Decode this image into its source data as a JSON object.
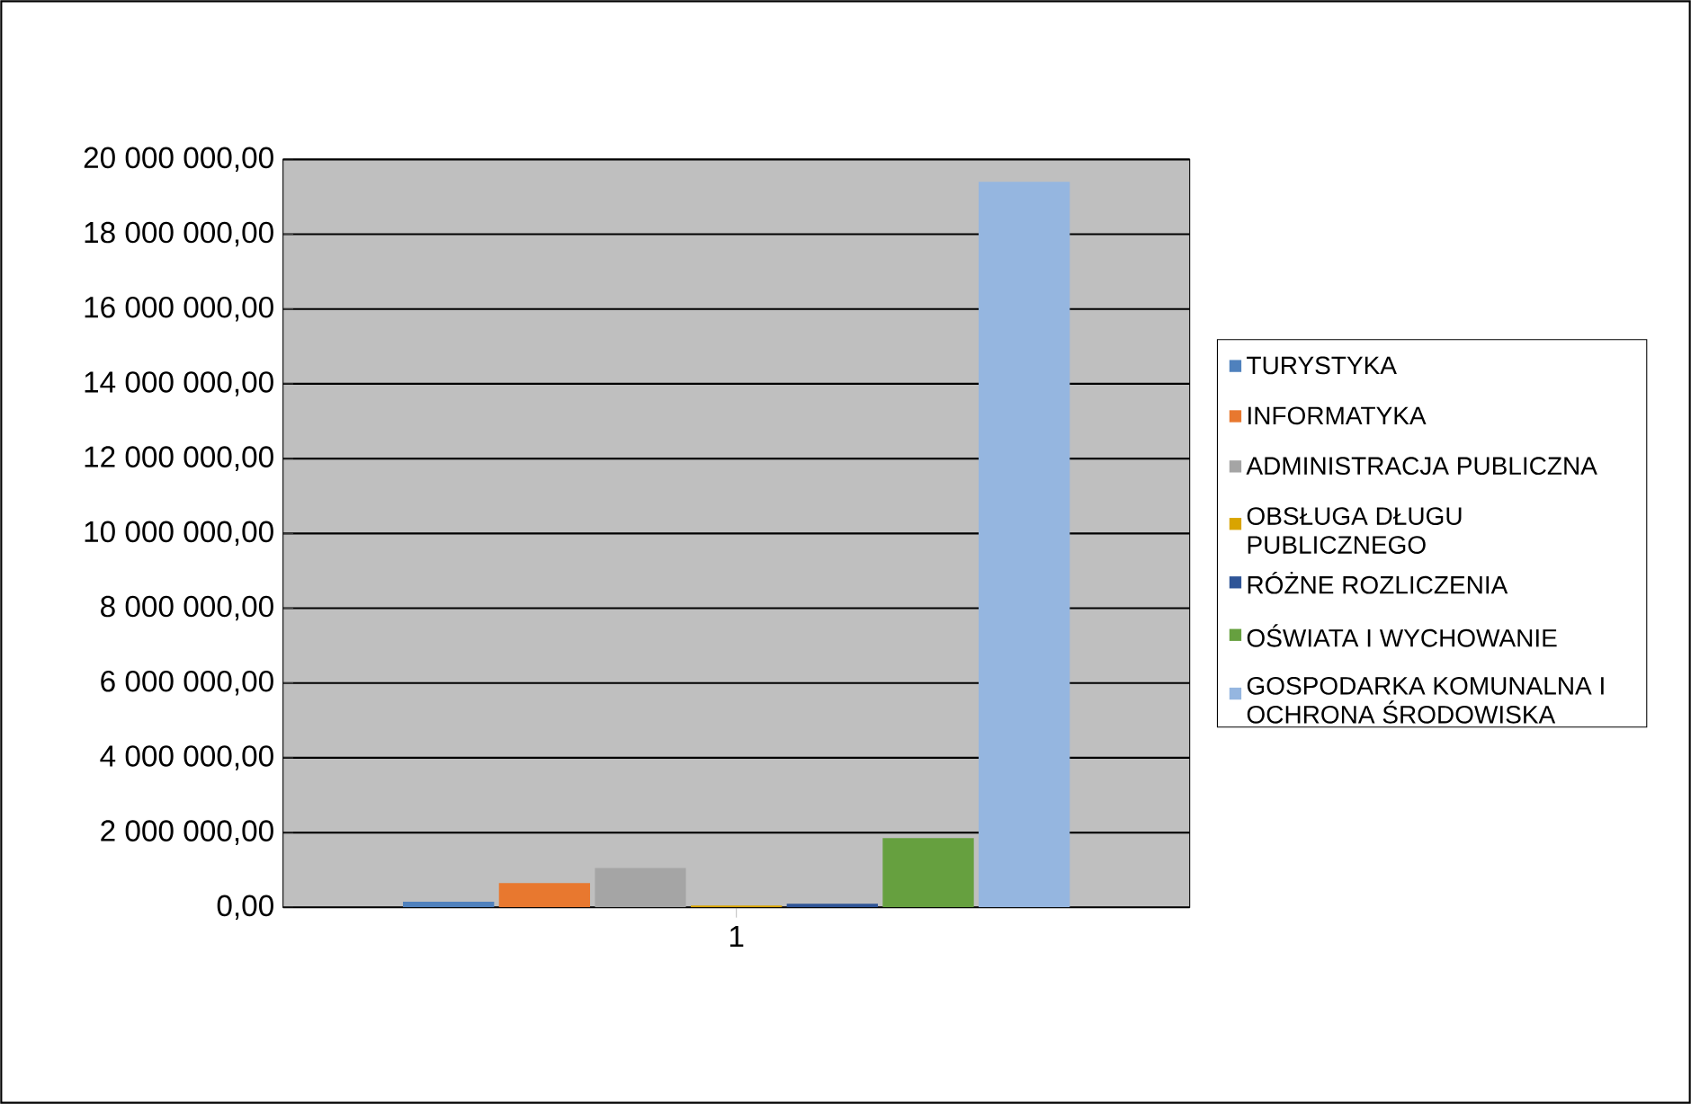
{
  "chart_data": {
    "type": "bar",
    "categories": [
      "1"
    ],
    "series": [
      {
        "name": "TURYSTYKA",
        "color": "#4f81bd",
        "values": [
          150000
        ]
      },
      {
        "name": "INFORMATYKA",
        "color": "#e8782f",
        "values": [
          650000
        ]
      },
      {
        "name": "ADMINISTRACJA PUBLICZNA",
        "color": "#a5a5a5",
        "values": [
          1050000
        ]
      },
      {
        "name": "OBSŁUGA DŁUGU PUBLICZNEGO",
        "color": "#d9a400",
        "values": [
          50000
        ]
      },
      {
        "name": "RÓŻNE ROZLICZENIA",
        "color": "#2f5597",
        "values": [
          100000
        ]
      },
      {
        "name": "OŚWIATA I WYCHOWANIE",
        "color": "#66a03f",
        "values": [
          1850000
        ]
      },
      {
        "name": "GOSPODARKA KOMUNALNA I OCHRONA ŚRODOWISKA",
        "color": "#95b6e0",
        "values": [
          19400000
        ]
      }
    ],
    "ylim": [
      0,
      20000000
    ],
    "yticks": [
      {
        "value": 0,
        "label": "0,00"
      },
      {
        "value": 2000000,
        "label": "2 000 000,00"
      },
      {
        "value": 4000000,
        "label": "4 000 000,00"
      },
      {
        "value": 6000000,
        "label": "6 000 000,00"
      },
      {
        "value": 8000000,
        "label": "8 000 000,00"
      },
      {
        "value": 10000000,
        "label": "10 000 000,00"
      },
      {
        "value": 12000000,
        "label": "12 000 000,00"
      },
      {
        "value": 14000000,
        "label": "14 000 000,00"
      },
      {
        "value": 16000000,
        "label": "16 000 000,00"
      },
      {
        "value": 18000000,
        "label": "18 000 000,00"
      },
      {
        "value": 20000000,
        "label": "20 000 000,00"
      }
    ],
    "grid": "y",
    "legend": "right"
  }
}
